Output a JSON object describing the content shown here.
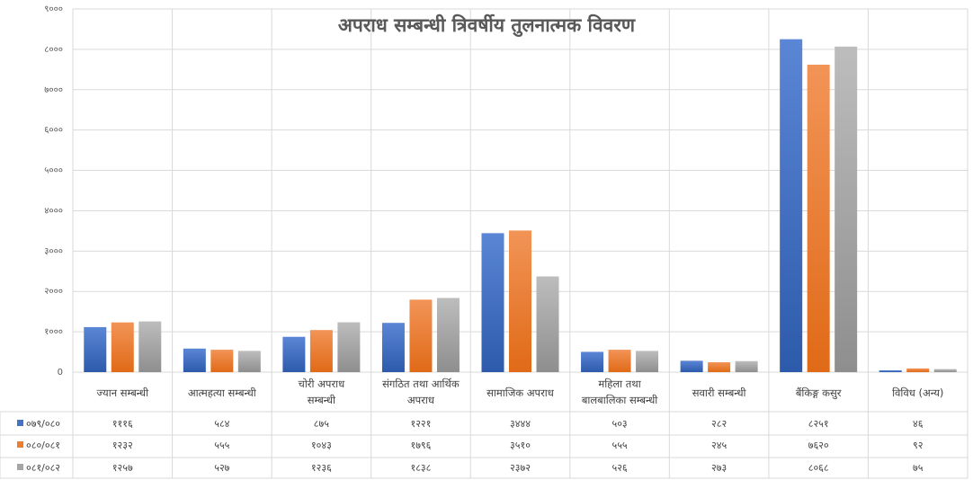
{
  "chart_data": {
    "type": "bar",
    "title": "अपराध सम्बन्धी त्रिवर्षीय तुलनात्मक विवरण",
    "categories": [
      [
        "ज्यान सम्बन्धी"
      ],
      [
        "आत्महत्या सम्बन्धी"
      ],
      [
        "चोरी अपराध",
        "सम्बन्धी"
      ],
      [
        "संगठित तथा आर्थिक",
        "अपराध"
      ],
      [
        "सामाजिक अपराध"
      ],
      [
        "महिला तथा",
        "बालबालिका सम्बन्धी"
      ],
      [
        "सवारी सम्बन्धी"
      ],
      [
        "बैंकिङ्ग कसुर"
      ],
      [
        "विविध (अन्य)"
      ]
    ],
    "series": [
      {
        "name": "०७९/०८०",
        "color": "#4472C4",
        "values": [
          1116,
          584,
          875,
          1221,
          3444,
          503,
          282,
          8251,
          46
        ],
        "labels": [
          "१११६",
          "५८४",
          "८७५",
          "१२२१",
          "३४४४",
          "५०३",
          "२८२",
          "८२५१",
          "४६"
        ]
      },
      {
        "name": "०८०/०८१",
        "color": "#ED7D31",
        "values": [
          1232,
          555,
          1043,
          1796,
          3510,
          555,
          245,
          7620,
          92
        ],
        "labels": [
          "१२३२",
          "५५५",
          "१०४३",
          "१७९६",
          "३५१०",
          "५५५",
          "२४५",
          "७६२०",
          "९२"
        ]
      },
      {
        "name": "०८१/०८२",
        "color": "#A5A5A5",
        "values": [
          1257,
          527,
          1236,
          1838,
          2372,
          526,
          273,
          8068,
          75
        ],
        "labels": [
          "१२५७",
          "५२७",
          "१२३६",
          "१८३८",
          "२३७२",
          "५२६",
          "२७३",
          "८०६८",
          "७५"
        ]
      }
    ],
    "ylim": [
      0,
      9000
    ],
    "yticks": [
      {
        "value": 0,
        "label": "0"
      },
      {
        "value": 1000,
        "label": "१०००"
      },
      {
        "value": 2000,
        "label": "२०००"
      },
      {
        "value": 3000,
        "label": "३०००"
      },
      {
        "value": 4000,
        "label": "४०००"
      },
      {
        "value": 5000,
        "label": "५०००"
      },
      {
        "value": 6000,
        "label": "६०००"
      },
      {
        "value": 7000,
        "label": "७०००"
      },
      {
        "value": 8000,
        "label": "८०००"
      },
      {
        "value": 9000,
        "label": "९०००"
      }
    ],
    "grid": true,
    "legend": "data-table"
  }
}
